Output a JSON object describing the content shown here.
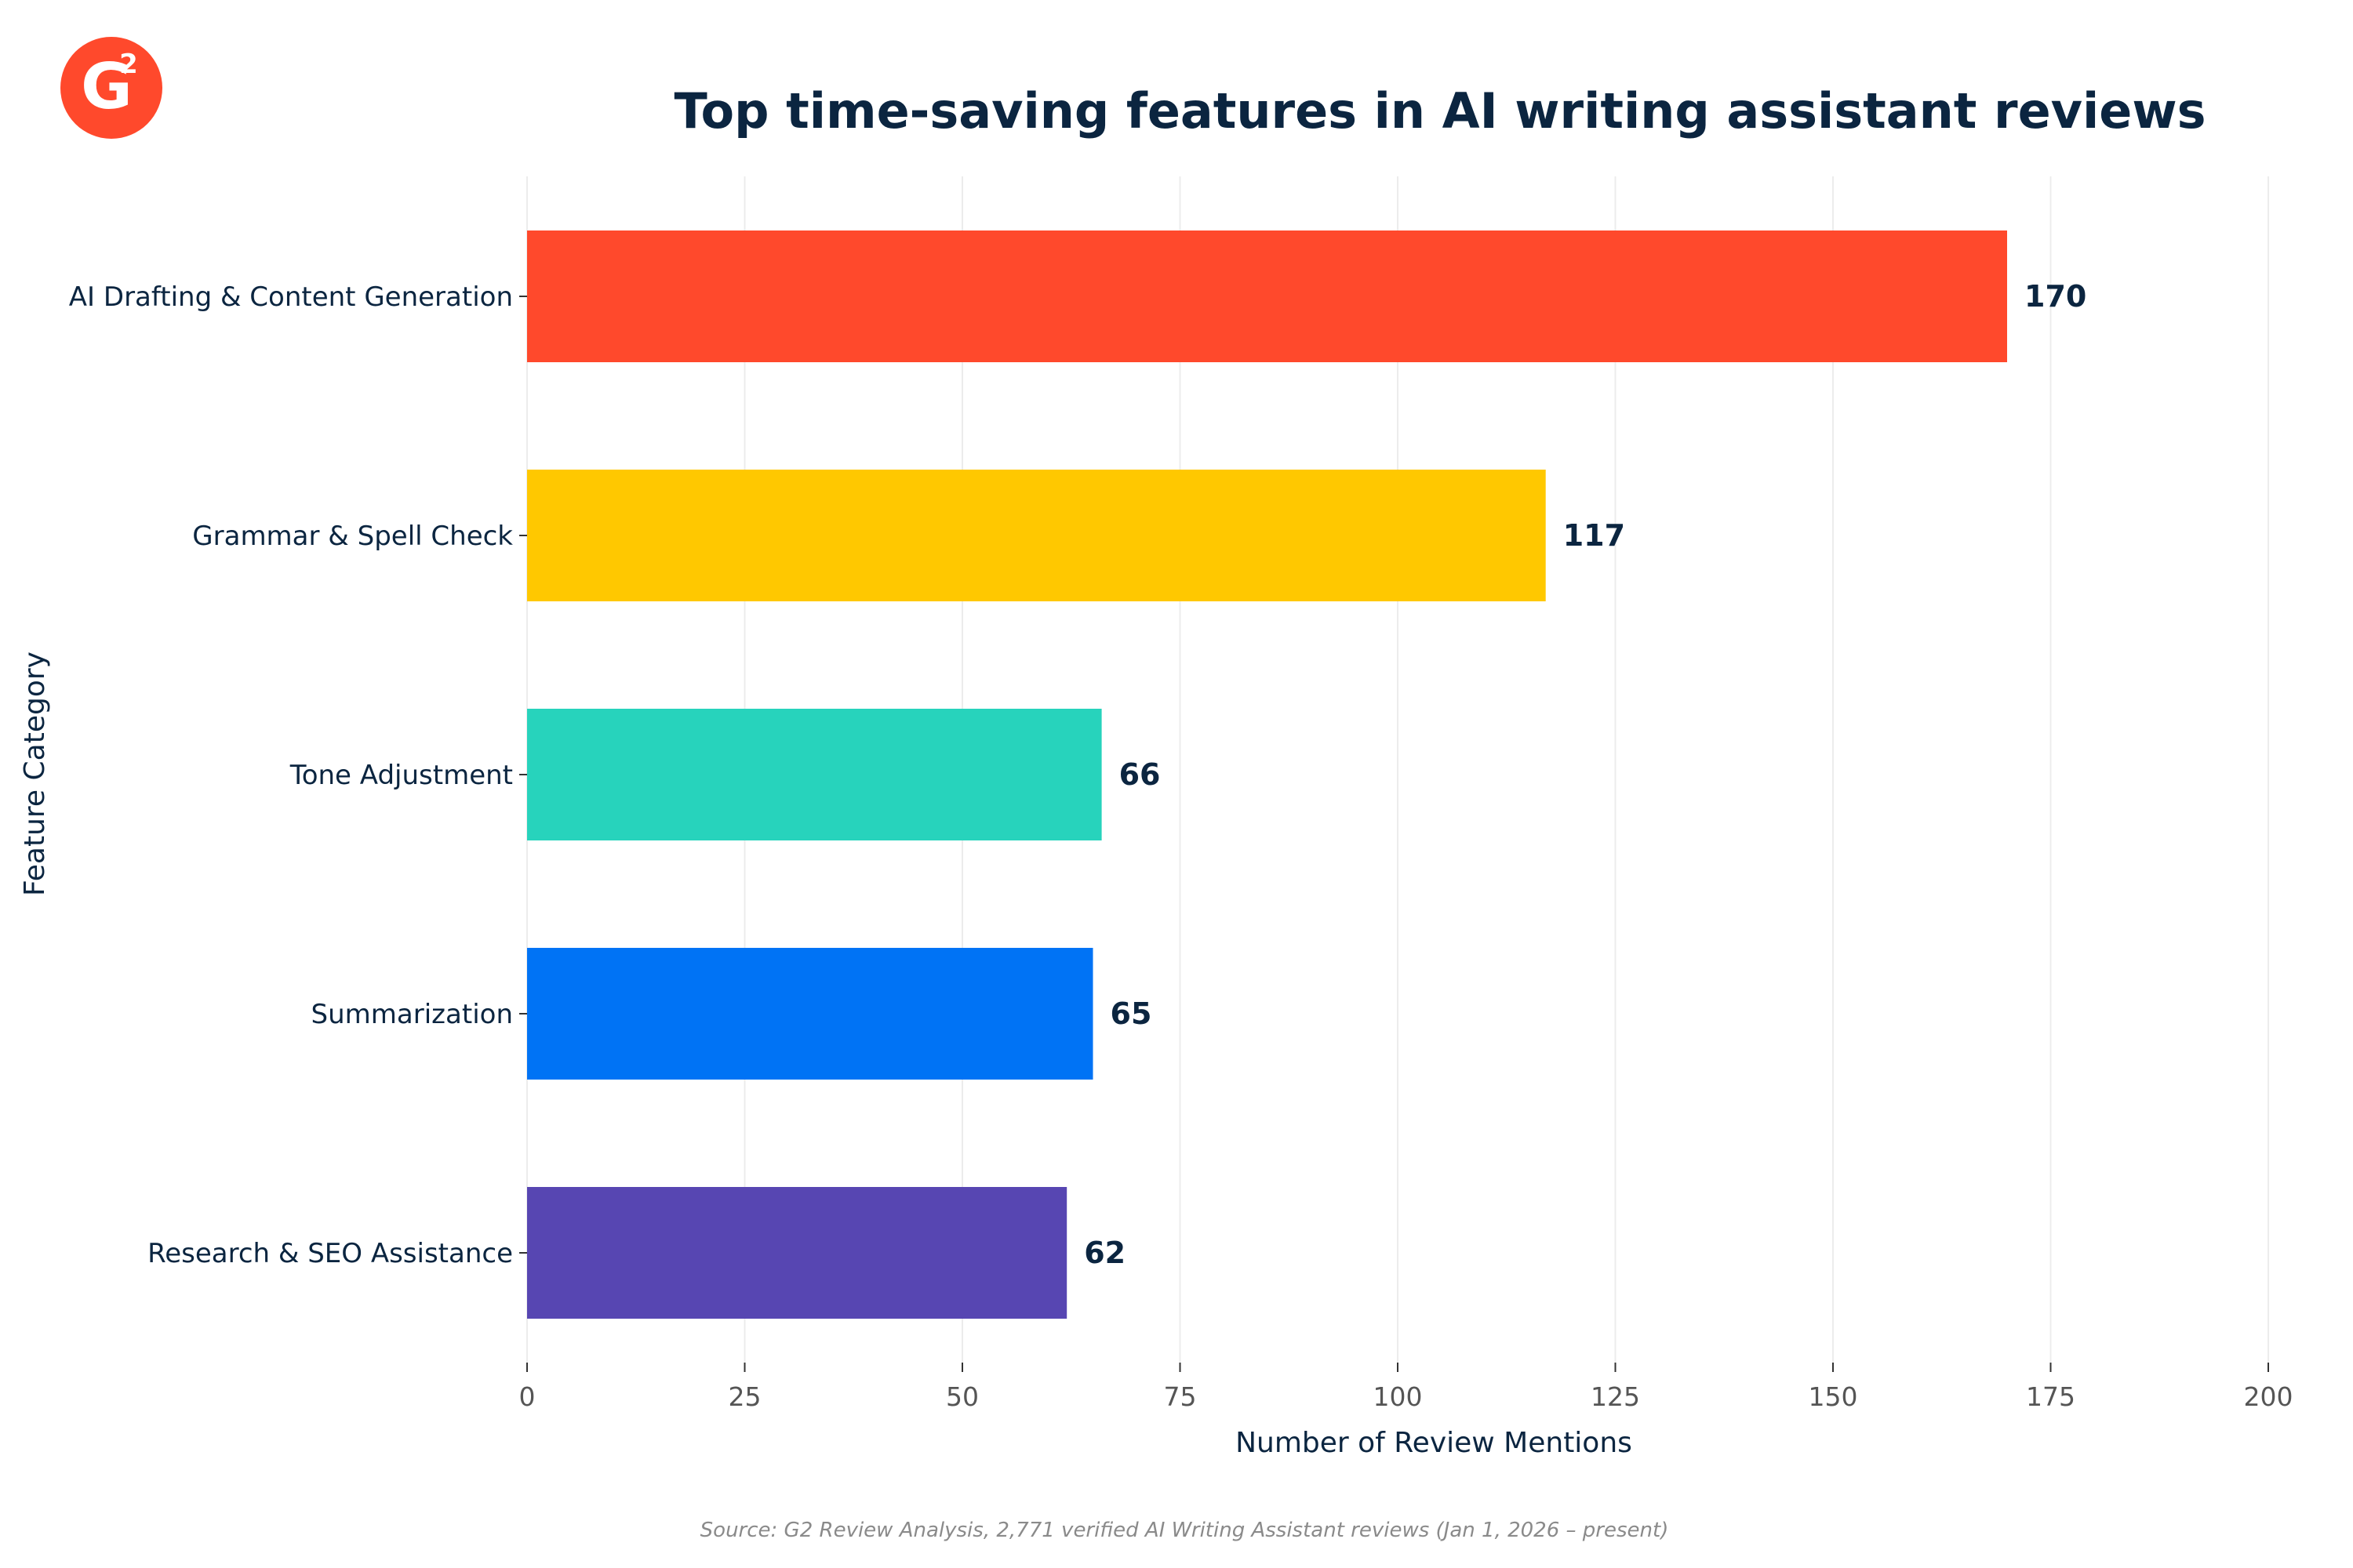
{
  "logo": {
    "text": "G",
    "superscript": "2",
    "color": "#ff492c"
  },
  "chart_data": {
    "type": "bar",
    "orientation": "horizontal",
    "title": "Top time-saving features in AI writing assistant reviews",
    "xlabel": "Number of Review Mentions",
    "ylabel": "Feature Category",
    "xlim": [
      0,
      200
    ],
    "xticks": [
      0,
      25,
      50,
      75,
      100,
      125,
      150,
      175,
      200
    ],
    "grid": "vertical",
    "categories": [
      "AI Drafting & Content Generation",
      "Grammar & Spell Check",
      "Tone Adjustment",
      "Summarization",
      "Research & SEO Assistance"
    ],
    "values": [
      170,
      117,
      66,
      65,
      62
    ],
    "colors": [
      "#ff492c",
      "#ffc800",
      "#27d3bc",
      "#0073f5",
      "#5746b2"
    ]
  },
  "source": "Source: G2 Review Analysis, 2,771 verified AI Writing Assistant reviews (Jan 1, 2026 – present)"
}
